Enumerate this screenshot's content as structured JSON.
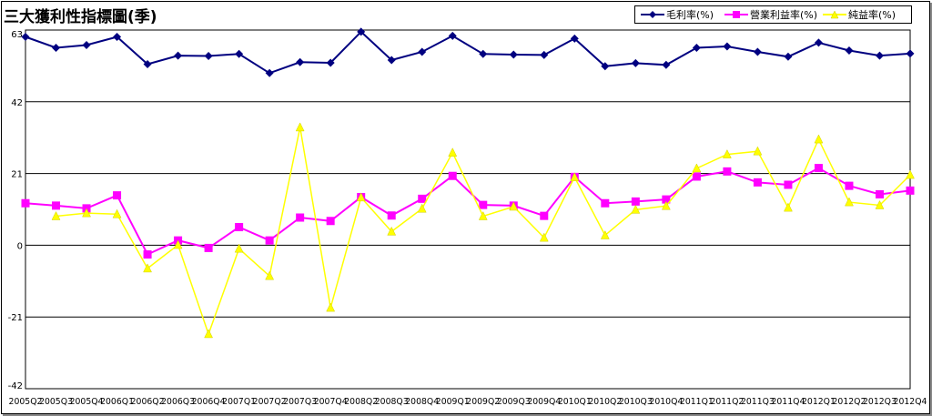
{
  "chart_data": {
    "type": "line",
    "title": "三大獲利性指標圖(季)",
    "ylim": [
      -42,
      63
    ],
    "yticks": [
      63,
      42,
      21,
      0,
      -21,
      -42
    ],
    "grid": true,
    "legend_position": "top-right",
    "categories": [
      "2005Q2",
      "2005Q3",
      "2005Q4",
      "2006Q1",
      "2006Q2",
      "2006Q3",
      "2006Q4",
      "2007Q1",
      "2007Q2",
      "2007Q3",
      "2007Q4",
      "2008Q2",
      "2008Q3",
      "2008Q4",
      "2009Q1",
      "2009Q2",
      "2009Q3",
      "2009Q4",
      "2010Q1",
      "2010Q2",
      "2010Q3",
      "2010Q4",
      "2011Q1",
      "2011Q2",
      "2011Q3",
      "2011Q4",
      "2012Q1",
      "2012Q2",
      "2012Q3",
      "2012Q4"
    ],
    "series": [
      {
        "name": "毛利率(%)",
        "color": "#000080",
        "marker": "diamond",
        "values": [
          61.0,
          57.8,
          58.6,
          61.0,
          53.0,
          55.5,
          55.4,
          56.0,
          50.4,
          53.6,
          53.4,
          62.5,
          54.2,
          56.6,
          61.3,
          56.0,
          55.8,
          55.7,
          60.5,
          52.4,
          53.3,
          52.8,
          57.8,
          58.2,
          56.6,
          55.2,
          59.3,
          57.0,
          55.5,
          56.1
        ]
      },
      {
        "name": "營業利益率(%)",
        "color": "#FF00FF",
        "marker": "square",
        "values": [
          12.3,
          11.6,
          10.8,
          14.6,
          -2.7,
          1.4,
          -0.8,
          5.3,
          1.4,
          8.1,
          7.1,
          14.1,
          8.7,
          13.6,
          20.3,
          11.8,
          11.6,
          8.6,
          20.0,
          12.3,
          12.8,
          13.4,
          20.1,
          21.6,
          18.4,
          17.7,
          22.6,
          17.4,
          14.9,
          16.0
        ]
      },
      {
        "name": "純益率(%)",
        "color": "#FFFF00",
        "marker": "triangle",
        "values": [
          null,
          8.5,
          9.4,
          9.1,
          -6.8,
          0.1,
          -26.0,
          -1.0,
          -9.0,
          34.5,
          -18.3,
          14.0,
          4.0,
          10.7,
          27.1,
          8.5,
          11.3,
          2.2,
          19.9,
          2.9,
          10.4,
          11.5,
          22.5,
          26.6,
          27.5,
          11.0,
          31.0,
          12.6,
          11.7,
          20.6
        ]
      }
    ]
  }
}
